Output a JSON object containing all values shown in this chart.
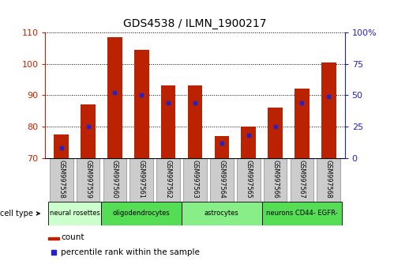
{
  "title": "GDS4538 / ILMN_1900217",
  "samples": [
    "GSM997558",
    "GSM997559",
    "GSM997560",
    "GSM997561",
    "GSM997562",
    "GSM997563",
    "GSM997564",
    "GSM997565",
    "GSM997566",
    "GSM997567",
    "GSM997568"
  ],
  "count_values": [
    77.5,
    87.0,
    108.5,
    104.5,
    93.0,
    93.0,
    77.0,
    80.0,
    86.0,
    92.0,
    100.5
  ],
  "percentile_values": [
    8,
    25,
    52,
    50,
    44,
    44,
    12,
    18,
    25,
    44,
    49
  ],
  "ylim_left": [
    70,
    110
  ],
  "ylim_right": [
    0,
    100
  ],
  "yticks_left": [
    70,
    80,
    90,
    100,
    110
  ],
  "yticks_right": [
    0,
    25,
    50,
    75,
    100
  ],
  "ytick_right_labels": [
    "0",
    "25",
    "50",
    "75",
    "100%"
  ],
  "bar_color": "#bb2200",
  "dot_color": "#2222cc",
  "cell_types": [
    {
      "label": "neural rosettes",
      "span": [
        0,
        2
      ],
      "color": "#ccffcc"
    },
    {
      "label": "oligodendrocytes",
      "span": [
        2,
        5
      ],
      "color": "#55dd55"
    },
    {
      "label": "astrocytes",
      "span": [
        5,
        8
      ],
      "color": "#88ee88"
    },
    {
      "label": "neurons CD44- EGFR-",
      "span": [
        8,
        11
      ],
      "color": "#55dd55"
    }
  ],
  "cell_type_label": "cell type",
  "legend_count_label": "count",
  "legend_percentile_label": "percentile rank within the sample",
  "bar_width": 0.55,
  "ylabel_left_color": "#cc2200",
  "ylabel_right_color": "#2222cc",
  "tick_bg_color": "#cccccc",
  "tick_border_color": "#999999"
}
